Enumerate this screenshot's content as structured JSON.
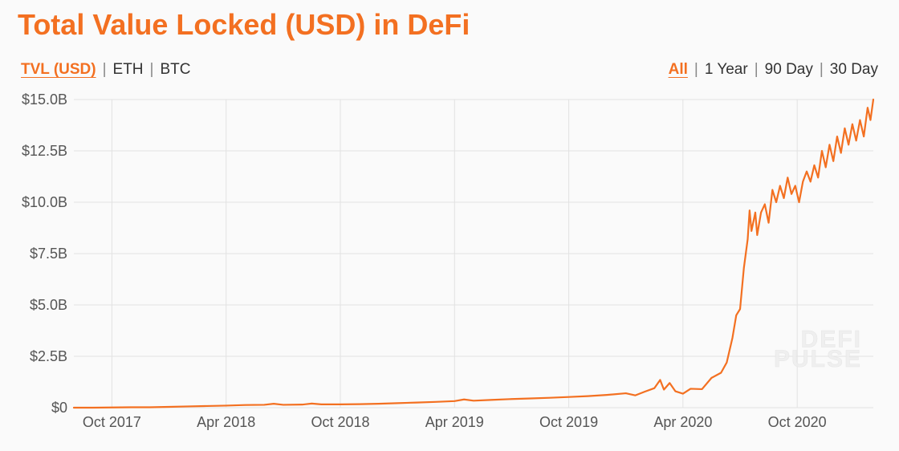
{
  "title": "Total Value Locked (USD) in DeFi",
  "colors": {
    "accent": "#f37021",
    "text": "#333333",
    "muted": "#888888",
    "grid": "#e2e2e2",
    "axis_text": "#555555",
    "background": "#fafafa",
    "watermark": "#eeeeee"
  },
  "metric_tabs": {
    "items": [
      "TVL (USD)",
      "ETH",
      "BTC"
    ],
    "active_index": 0
  },
  "range_tabs": {
    "items": [
      "All",
      "1 Year",
      "90 Day",
      "30 Day"
    ],
    "active_index": 0
  },
  "chart": {
    "type": "line",
    "line_color": "#f37021",
    "line_width": 2.2,
    "background_color": "#fafafa",
    "grid_color": "#e2e2e2",
    "y": {
      "min": 0,
      "max": 15,
      "tick_step": 2.5,
      "tick_labels": [
        "$0",
        "$2.5B",
        "$5.0B",
        "$7.5B",
        "$10.0B",
        "$12.5B",
        "$15.0B"
      ],
      "tick_fontsize": 18
    },
    "x": {
      "min": 0,
      "max": 42,
      "tick_positions": [
        2,
        8,
        14,
        20,
        26,
        32,
        38
      ],
      "tick_labels": [
        "Oct 2017",
        "Apr 2018",
        "Oct 2018",
        "Apr 2019",
        "Oct 2019",
        "Apr 2020",
        "Oct 2020"
      ],
      "tick_fontsize": 18
    },
    "series": [
      {
        "name": "TVL (USD)",
        "data": [
          [
            0,
            0.0
          ],
          [
            1,
            0.0
          ],
          [
            2,
            0.01
          ],
          [
            3,
            0.02
          ],
          [
            4,
            0.02
          ],
          [
            5,
            0.04
          ],
          [
            6,
            0.06
          ],
          [
            7,
            0.08
          ],
          [
            8,
            0.1
          ],
          [
            9,
            0.13
          ],
          [
            10,
            0.14
          ],
          [
            10.5,
            0.19
          ],
          [
            11,
            0.14
          ],
          [
            12,
            0.15
          ],
          [
            12.5,
            0.2
          ],
          [
            13,
            0.16
          ],
          [
            14,
            0.16
          ],
          [
            15,
            0.17
          ],
          [
            16,
            0.19
          ],
          [
            17,
            0.22
          ],
          [
            18,
            0.25
          ],
          [
            19,
            0.28
          ],
          [
            20,
            0.32
          ],
          [
            20.5,
            0.4
          ],
          [
            21,
            0.34
          ],
          [
            22,
            0.38
          ],
          [
            23,
            0.42
          ],
          [
            24,
            0.45
          ],
          [
            25,
            0.48
          ],
          [
            26,
            0.52
          ],
          [
            27,
            0.56
          ],
          [
            28,
            0.62
          ],
          [
            29,
            0.7
          ],
          [
            29.5,
            0.6
          ],
          [
            30,
            0.78
          ],
          [
            30.5,
            0.95
          ],
          [
            30.8,
            1.35
          ],
          [
            31,
            0.88
          ],
          [
            31.3,
            1.2
          ],
          [
            31.6,
            0.8
          ],
          [
            32,
            0.68
          ],
          [
            32.4,
            0.92
          ],
          [
            33,
            0.9
          ],
          [
            33.5,
            1.45
          ],
          [
            34,
            1.7
          ],
          [
            34.3,
            2.2
          ],
          [
            34.6,
            3.4
          ],
          [
            34.8,
            4.5
          ],
          [
            35,
            4.8
          ],
          [
            35.2,
            6.8
          ],
          [
            35.4,
            8.2
          ],
          [
            35.5,
            9.6
          ],
          [
            35.6,
            8.6
          ],
          [
            35.8,
            9.5
          ],
          [
            35.9,
            8.4
          ],
          [
            36.1,
            9.5
          ],
          [
            36.3,
            9.9
          ],
          [
            36.5,
            9.0
          ],
          [
            36.7,
            10.6
          ],
          [
            36.9,
            10.0
          ],
          [
            37.1,
            10.8
          ],
          [
            37.3,
            10.2
          ],
          [
            37.5,
            11.2
          ],
          [
            37.7,
            10.4
          ],
          [
            37.9,
            10.8
          ],
          [
            38.1,
            10.0
          ],
          [
            38.3,
            11.0
          ],
          [
            38.5,
            11.5
          ],
          [
            38.7,
            11.0
          ],
          [
            38.9,
            11.8
          ],
          [
            39.1,
            11.2
          ],
          [
            39.3,
            12.5
          ],
          [
            39.5,
            11.7
          ],
          [
            39.7,
            12.8
          ],
          [
            39.9,
            12.0
          ],
          [
            40.1,
            13.2
          ],
          [
            40.3,
            12.4
          ],
          [
            40.5,
            13.6
          ],
          [
            40.7,
            12.8
          ],
          [
            40.9,
            13.8
          ],
          [
            41.1,
            13.0
          ],
          [
            41.3,
            14.0
          ],
          [
            41.5,
            13.2
          ],
          [
            41.7,
            14.6
          ],
          [
            41.85,
            14.0
          ],
          [
            42,
            15.0
          ]
        ]
      }
    ],
    "watermark": {
      "line1": "DEFI",
      "line2": "PULSE",
      "fontsize": 30
    }
  }
}
